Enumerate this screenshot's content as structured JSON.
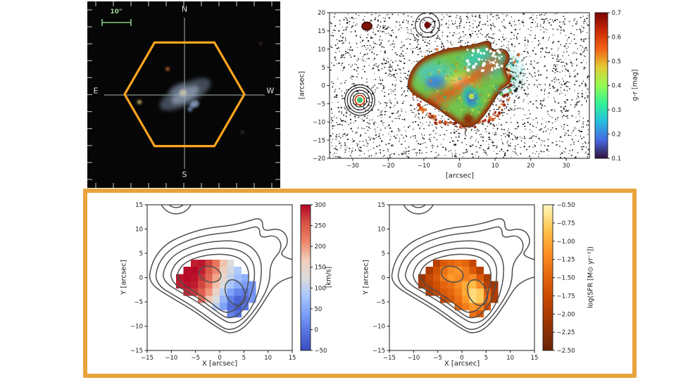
{
  "figure": {
    "background": "#ffffff",
    "highlight_box_color": "#e8a33c",
    "hexagon_color": "#ffa41e",
    "scalebar_color": "#86c77e",
    "contour_color_bottom": "#4f4f4f",
    "contour_color_top": "#111111"
  },
  "chart_data": [
    {
      "id": "sdss_cutout",
      "type": "image",
      "description": "SDSS gri color cutout of a merging galaxy pair with orange MaNGA hexagonal IFU footprint, crosshair and compass",
      "scalebar": "10\"",
      "compass": {
        "n": "N",
        "e": "E",
        "s": "S",
        "w": "W"
      }
    },
    {
      "id": "g_r_color_map",
      "type": "heatmap",
      "title": "",
      "xlabel": "[arcsec]",
      "ylabel": "[arcsec]",
      "xlim": [
        -36.5,
        36.5
      ],
      "ylim": [
        -20,
        20
      ],
      "xticks": [
        -30,
        -20,
        -10,
        0,
        10,
        20,
        30
      ],
      "yticks": [
        -20,
        -15,
        -10,
        -5,
        0,
        5,
        10,
        15,
        20
      ],
      "grid": false,
      "colorbar": {
        "label": "g-r [mag]",
        "min": 0.1,
        "max": 0.7,
        "ticks": [
          0.7,
          0.6,
          0.5,
          0.4,
          0.3,
          0.2,
          0.1
        ],
        "colormap": "turbo"
      },
      "annotations": [
        "speckled sky noise field",
        "galaxy with nested black isophote contours, red rim, green-cyan interior",
        "contoured compact source near (-9, 16.5)",
        "contoured source with green core near (-28, -4)",
        "dark red blob near (-26, 16.5)"
      ]
    },
    {
      "id": "velocity_map",
      "type": "heatmap",
      "xlabel": "X [arcsec]",
      "ylabel": "Y [arcsec]",
      "xlim": [
        -15,
        15
      ],
      "ylim": [
        -15,
        15
      ],
      "xticks": [
        -15,
        -10,
        -5,
        0,
        5,
        10,
        15
      ],
      "yticks": [
        -15,
        -10,
        -5,
        0,
        5,
        10,
        15
      ],
      "grid": false,
      "colorbar": {
        "label": "[km/s]",
        "min": -50,
        "max": 300,
        "ticks": [
          300,
          250,
          200,
          150,
          100,
          50,
          0,
          -50
        ],
        "colormap": "coolwarm"
      },
      "cells": {
        "x_centers": [
          -8.25,
          -6.75,
          -5.25,
          -3.75,
          -2.25,
          -0.75,
          0.75,
          2.25,
          3.75,
          5.25,
          6.75
        ],
        "y_centers": [
          3.0,
          1.5,
          0.0,
          -1.5,
          -3.0,
          -4.5,
          -6.0,
          -7.5
        ],
        "cell_size": 1.5,
        "values": [
          [
            null,
            null,
            285,
            290,
            265,
            225,
            175,
            125,
            null,
            null,
            null
          ],
          [
            null,
            295,
            298,
            285,
            250,
            210,
            160,
            115,
            85,
            null,
            null
          ],
          [
            290,
            298,
            292,
            272,
            238,
            192,
            142,
            102,
            72,
            55,
            null
          ],
          [
            285,
            292,
            286,
            262,
            226,
            176,
            122,
            82,
            52,
            35,
            28
          ],
          [
            null,
            278,
            272,
            246,
            202,
            152,
            92,
            42,
            12,
            2,
            22
          ],
          [
            null,
            null,
            null,
            232,
            172,
            122,
            62,
            8,
            -22,
            -12,
            32
          ],
          [
            null,
            null,
            null,
            null,
            null,
            92,
            42,
            -12,
            -32,
            -2,
            null
          ],
          [
            null,
            null,
            null,
            null,
            null,
            null,
            null,
            12,
            -8,
            null,
            null
          ]
        ]
      }
    },
    {
      "id": "sfr_map",
      "type": "heatmap",
      "xlabel": "X [arcsec]",
      "ylabel": "Y [arcsec]",
      "xlim": [
        -15,
        15
      ],
      "ylim": [
        -15,
        15
      ],
      "xticks": [
        -15,
        -10,
        -5,
        0,
        5,
        10,
        15
      ],
      "yticks": [
        -15,
        -10,
        -5,
        0,
        5,
        10,
        15
      ],
      "grid": false,
      "colorbar": {
        "label": "log(SFR [M⊙ yr⁻¹])",
        "min": -2.5,
        "max": -0.5,
        "ticks": [
          "-0.50",
          "-0.75",
          "-1.00",
          "-1.25",
          "-1.50",
          "-1.75",
          "-2.00",
          "-2.25",
          "-2.50"
        ],
        "colormap": "YlOrBr_r"
      },
      "cells": {
        "x_centers": [
          -8.25,
          -6.75,
          -5.25,
          -3.75,
          -2.25,
          -0.75,
          0.75,
          2.25,
          3.75,
          5.25,
          6.75
        ],
        "y_centers": [
          3.0,
          1.5,
          0.0,
          -1.5,
          -3.0,
          -4.5,
          -6.0,
          -7.5
        ],
        "cell_size": 1.5,
        "values": [
          [
            null,
            null,
            -1.9,
            -1.6,
            -1.5,
            -1.4,
            -1.5,
            -1.8,
            null,
            null,
            null
          ],
          [
            null,
            -2.0,
            -1.7,
            -1.4,
            -1.2,
            -1.1,
            -1.3,
            -1.6,
            -1.9,
            null,
            null
          ],
          [
            -2.1,
            -1.8,
            -1.6,
            -1.3,
            -1.1,
            -1.2,
            -1.3,
            -1.2,
            -1.6,
            -2.0,
            null
          ],
          [
            -2.0,
            -1.9,
            -1.7,
            -1.5,
            -1.4,
            -1.2,
            -1.0,
            -0.9,
            -1.2,
            -1.9,
            -2.1
          ],
          [
            null,
            -2.0,
            -1.8,
            -1.6,
            -1.5,
            -1.3,
            -1.0,
            -0.7,
            -0.8,
            -1.5,
            -2.0
          ],
          [
            null,
            null,
            null,
            -1.8,
            -1.6,
            -1.4,
            -1.1,
            -0.7,
            -0.8,
            -1.4,
            -2.0
          ],
          [
            null,
            null,
            null,
            null,
            null,
            -1.5,
            -1.3,
            -1.1,
            -1.2,
            -1.7,
            null
          ],
          [
            null,
            null,
            null,
            null,
            null,
            null,
            null,
            -1.4,
            -1.6,
            null,
            null
          ]
        ]
      }
    }
  ]
}
